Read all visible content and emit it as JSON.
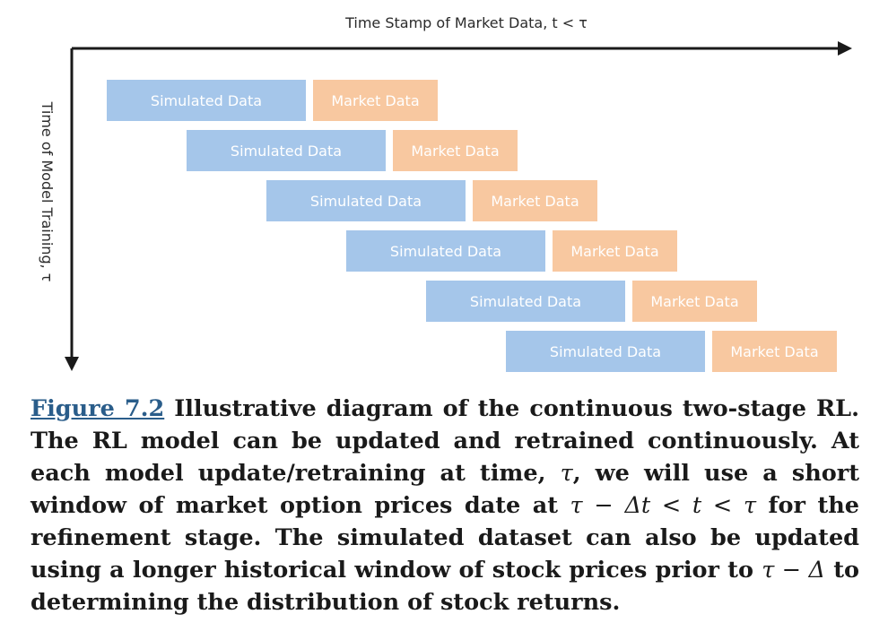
{
  "diagram": {
    "x_axis_title": "Time Stamp of Market Data, t < τ",
    "y_axis_title": "Time of Model Training, τ",
    "colors": {
      "simulated": "#a5c6ea",
      "market": "#f8c8a0",
      "axis": "#1a1a1a"
    },
    "rows": [
      {
        "simulated_label": "Simulated Data",
        "market_label": "Market Data"
      },
      {
        "simulated_label": "Simulated Data",
        "market_label": "Market Data"
      },
      {
        "simulated_label": "Simulated Data",
        "market_label": "Market Data"
      },
      {
        "simulated_label": "Simulated Data",
        "market_label": "Market Data"
      },
      {
        "simulated_label": "Simulated Data",
        "market_label": "Market Data"
      },
      {
        "simulated_label": "Simulated Data",
        "market_label": "Market Data"
      }
    ]
  },
  "caption": {
    "figure_ref": "Figure 7.2",
    "part1": " Illustrative diagram of the continuous two-stage RL. The RL model can be updated and retrained continuously. At each model update/retraining at time, ",
    "math1": "τ",
    "part2": ", we will use a short window of market option prices date at ",
    "math2": "τ − Δt < t < τ",
    "part3": " for the refinement stage. The simulated dataset can also be updated using a longer historical window of stock prices prior to ",
    "math3": "τ − Δ",
    "part4": " to determining the distribution of stock returns."
  }
}
